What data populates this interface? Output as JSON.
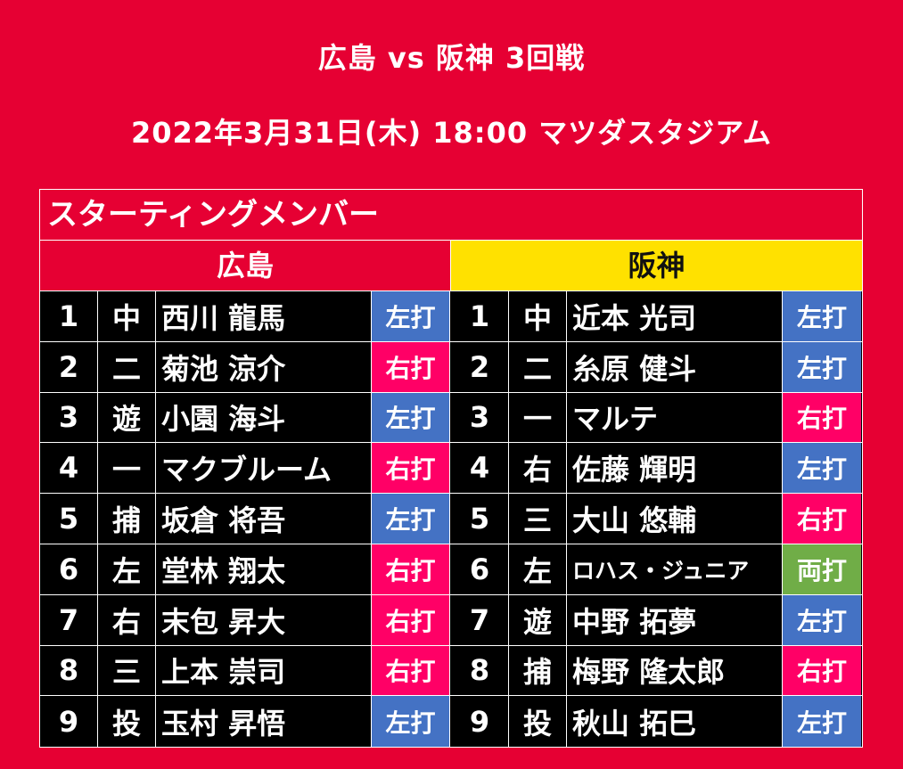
{
  "header": {
    "match_title": "広島 vs 阪神 3回戦",
    "match_info": "2022年3月31日(木) 18:00 マツダスタジアム",
    "board_title": "スターティングメンバー"
  },
  "colors": {
    "background": "#e60033",
    "away_team_header": "#ffe100",
    "bat_left": "#4472c4",
    "bat_right": "#ff0066",
    "bat_switch": "#70ad47"
  },
  "teams": [
    {
      "name": "広島",
      "players": [
        {
          "order": "1",
          "pos": "中",
          "name": "西川 龍馬",
          "bat": "左打",
          "bat_type": "left"
        },
        {
          "order": "2",
          "pos": "二",
          "name": "菊池 涼介",
          "bat": "右打",
          "bat_type": "right"
        },
        {
          "order": "3",
          "pos": "遊",
          "name": "小園 海斗",
          "bat": "左打",
          "bat_type": "left"
        },
        {
          "order": "4",
          "pos": "一",
          "name": "マクブルーム",
          "bat": "右打",
          "bat_type": "right"
        },
        {
          "order": "5",
          "pos": "捕",
          "name": "坂倉 将吾",
          "bat": "左打",
          "bat_type": "left"
        },
        {
          "order": "6",
          "pos": "左",
          "name": "堂林 翔太",
          "bat": "右打",
          "bat_type": "right"
        },
        {
          "order": "7",
          "pos": "右",
          "name": "末包 昇大",
          "bat": "右打",
          "bat_type": "right"
        },
        {
          "order": "8",
          "pos": "三",
          "name": "上本 崇司",
          "bat": "右打",
          "bat_type": "right"
        },
        {
          "order": "9",
          "pos": "投",
          "name": "玉村 昇悟",
          "bat": "左打",
          "bat_type": "left"
        }
      ]
    },
    {
      "name": "阪神",
      "players": [
        {
          "order": "1",
          "pos": "中",
          "name": "近本 光司",
          "bat": "左打",
          "bat_type": "left"
        },
        {
          "order": "2",
          "pos": "二",
          "name": "糸原 健斗",
          "bat": "左打",
          "bat_type": "left"
        },
        {
          "order": "3",
          "pos": "一",
          "name": "マルテ",
          "bat": "右打",
          "bat_type": "right"
        },
        {
          "order": "4",
          "pos": "右",
          "name": "佐藤 輝明",
          "bat": "左打",
          "bat_type": "left"
        },
        {
          "order": "5",
          "pos": "三",
          "name": "大山 悠輔",
          "bat": "右打",
          "bat_type": "right"
        },
        {
          "order": "6",
          "pos": "左",
          "name": "ロハス・ジュニア",
          "bat": "両打",
          "bat_type": "switch"
        },
        {
          "order": "7",
          "pos": "遊",
          "name": "中野 拓夢",
          "bat": "左打",
          "bat_type": "left"
        },
        {
          "order": "8",
          "pos": "捕",
          "name": "梅野 隆太郎",
          "bat": "右打",
          "bat_type": "right"
        },
        {
          "order": "9",
          "pos": "投",
          "name": "秋山 拓巳",
          "bat": "左打",
          "bat_type": "left"
        }
      ]
    }
  ]
}
